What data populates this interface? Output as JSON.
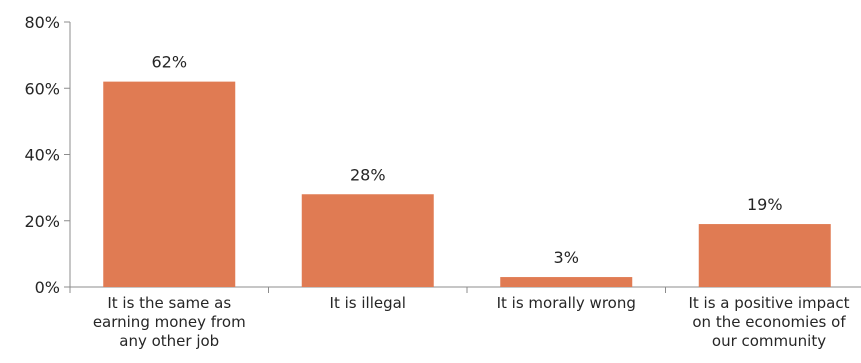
{
  "chart_data": {
    "type": "bar",
    "categories": [
      [
        "It is the same as",
        "earning money from",
        "any other job"
      ],
      [
        "It is illegal"
      ],
      [
        "It is morally wrong"
      ],
      [
        "It is a positive impact",
        "on the economies of",
        "our community"
      ]
    ],
    "values": [
      62,
      28,
      3,
      19
    ],
    "data_labels": [
      "62%",
      "28%",
      "3%",
      "19%"
    ],
    "y_ticks": [
      0,
      20,
      40,
      60,
      80
    ],
    "y_tick_labels": [
      "0%",
      "20%",
      "40%",
      "60%",
      "80%"
    ],
    "ylim": [
      0,
      80
    ],
    "bar_color": "#e07b53",
    "grid": false,
    "legend": "none"
  }
}
